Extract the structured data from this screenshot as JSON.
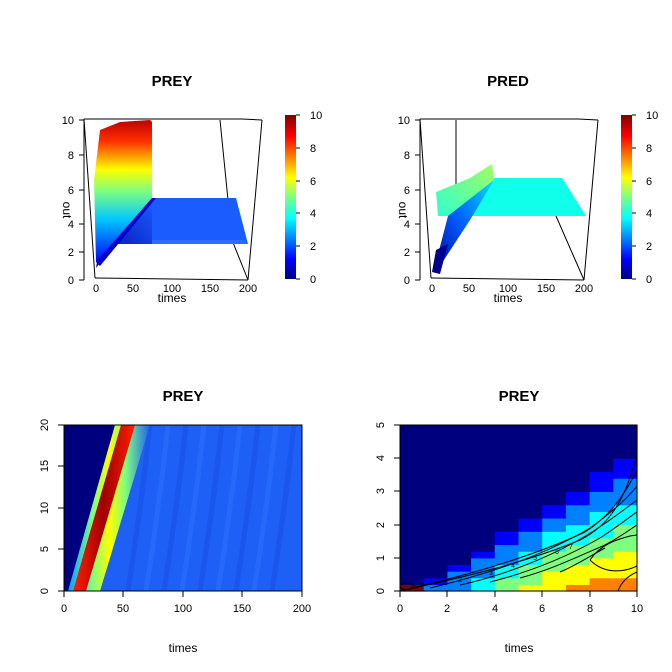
{
  "colors": {
    "jet": [
      "#00007f",
      "#0000ff",
      "#007fff",
      "#00ffff",
      "#7fff7f",
      "#ffff00",
      "#ff7f00",
      "#ff0000",
      "#7f0000"
    ]
  },
  "chart_data": [
    {
      "type": "surface3d",
      "title": "PREY",
      "xlabel": "times",
      "zlabel": "out",
      "x_ticks": [
        "0",
        "50",
        "100",
        "150",
        "200"
      ],
      "z_ticks": [
        "0",
        "2",
        "4",
        "6",
        "8",
        "10"
      ],
      "colorbar_ticks": [
        "0",
        "2",
        "4",
        "6",
        "8",
        "10"
      ],
      "x_range": [
        0,
        200
      ],
      "z_range": [
        0,
        10
      ],
      "peak_value": 10,
      "plateau_value": 2.8
    },
    {
      "type": "surface3d",
      "title": "PRED",
      "xlabel": "times",
      "zlabel": "out",
      "x_ticks": [
        "0",
        "50",
        "100",
        "150",
        "200"
      ],
      "z_ticks": [
        "0",
        "2",
        "4",
        "6",
        "8",
        "10"
      ],
      "colorbar_ticks": [
        "0",
        "2",
        "4",
        "6",
        "8",
        "10"
      ],
      "x_range": [
        0,
        200
      ],
      "z_range": [
        0,
        10
      ],
      "peak_value": 6.5,
      "plateau_value": 4
    },
    {
      "type": "heatmap",
      "title": "PREY",
      "xlabel": "times",
      "ylabel": "",
      "x_ticks": [
        "0",
        "50",
        "100",
        "150",
        "200"
      ],
      "y_ticks": [
        "0",
        "5",
        "10",
        "15",
        "20"
      ],
      "xlim": [
        0,
        200
      ],
      "ylim": [
        0,
        20
      ],
      "wave_front": {
        "x_at_ymin": 8,
        "x_at_ymax": 53,
        "peak_value": 10
      },
      "background_value": 2.6,
      "behind_wave_value": 0.3
    },
    {
      "type": "heatmap",
      "title": "PREY",
      "xlabel": "times",
      "ylabel": "",
      "x_ticks": [
        "0",
        "2",
        "4",
        "6",
        "8",
        "10"
      ],
      "y_ticks": [
        "0",
        "1",
        "2",
        "3",
        "4",
        "5"
      ],
      "xlim": [
        0,
        10
      ],
      "ylim": [
        0,
        5
      ],
      "contour_labels": [
        "2",
        "3",
        "4",
        "5",
        "6",
        "7"
      ],
      "contour_levels": [
        1,
        2,
        3,
        4,
        5,
        6,
        7
      ]
    }
  ]
}
